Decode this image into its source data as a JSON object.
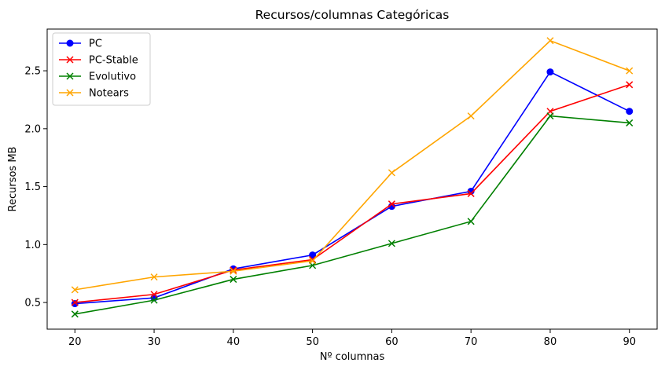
{
  "chart_data": {
    "type": "line",
    "title": "Recursos/columnas Categóricas",
    "xlabel": "Nº columnas",
    "ylabel": "Recursos MB",
    "x": [
      20,
      30,
      40,
      50,
      60,
      70,
      80,
      90
    ],
    "xlim": [
      16.5,
      93.5
    ],
    "ylim": [
      0.27,
      2.86
    ],
    "xticks": [
      20,
      30,
      40,
      50,
      60,
      70,
      80,
      90
    ],
    "yticks": [
      0.5,
      1.0,
      1.5,
      2.0,
      2.5
    ],
    "ytick_labels": [
      "0.5",
      "1.0",
      "1.5",
      "2.0",
      "2.5"
    ],
    "grid": false,
    "legend_position": "top-left",
    "series": [
      {
        "name": "PC",
        "color": "#0000ff",
        "marker": "circle",
        "values": [
          0.49,
          0.54,
          0.79,
          0.91,
          1.33,
          1.46,
          2.49,
          2.15
        ]
      },
      {
        "name": "PC-Stable",
        "color": "#ff0000",
        "marker": "x",
        "values": [
          0.5,
          0.57,
          0.78,
          0.87,
          1.35,
          1.44,
          2.15,
          2.38
        ]
      },
      {
        "name": "Evolutivo",
        "color": "#008000",
        "marker": "x",
        "values": [
          0.4,
          0.52,
          0.7,
          0.82,
          1.01,
          1.2,
          2.11,
          2.05
        ]
      },
      {
        "name": "Notears",
        "color": "#ffa500",
        "marker": "x",
        "values": [
          0.61,
          0.72,
          0.77,
          0.86,
          1.62,
          2.11,
          2.76,
          2.5
        ]
      }
    ]
  }
}
